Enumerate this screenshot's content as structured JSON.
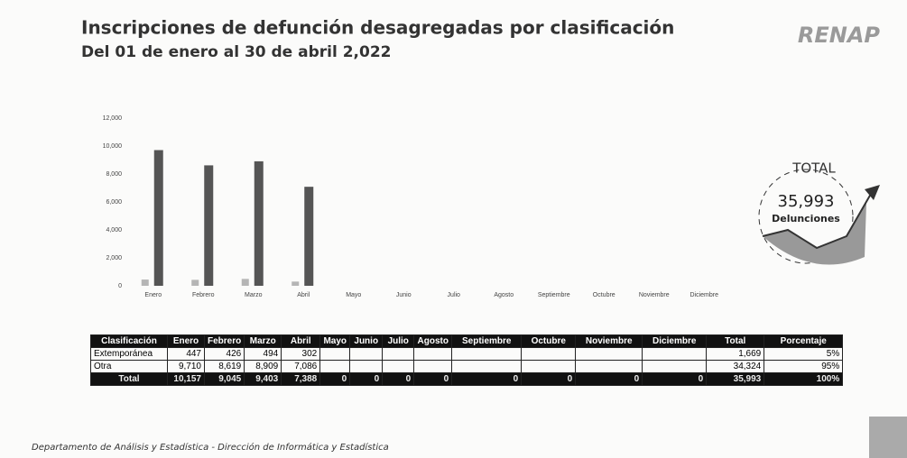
{
  "title": "Inscripciones de defunción desagregadas por clasificación",
  "subtitle": "Del 01 de enero al 30 de abril 2,022",
  "logo": "RENAP",
  "total_badge": {
    "label": "TOTAL",
    "value": "35,993",
    "caption": "Delunciones"
  },
  "footer": "Departamento de Análisis y Estadística - Dirección de Informática y Estadística",
  "chart_data": {
    "type": "bar",
    "categories": [
      "Enero",
      "Febrero",
      "Marzo",
      "Abril",
      "Mayo",
      "Junio",
      "Julio",
      "Agosto",
      "Septiembre",
      "Octubre",
      "Noviembre",
      "Diciembre"
    ],
    "series": [
      {
        "color": "#b5b5b5",
        "values": [
          447,
          426,
          494,
          302,
          null,
          null,
          null,
          null,
          null,
          null,
          null,
          null
        ]
      },
      {
        "color": "#555555",
        "values": [
          9710,
          8619,
          8909,
          7086,
          null,
          null,
          null,
          null,
          null,
          null,
          null,
          null
        ]
      }
    ],
    "ylim": [
      0,
      12000
    ],
    "yticks": [
      0,
      {
        "value": 2000,
        "label": "2,000"
      },
      {
        "value": 4000,
        "label": "4,000"
      },
      {
        "value": 6000,
        "label": "6,000"
      },
      {
        "value": 8000,
        "label": "8,000"
      },
      {
        "value": 10000,
        "label": "10,000"
      },
      {
        "value": 12000,
        "label": "12,000"
      }
    ]
  },
  "table": {
    "header": [
      "Clasificación",
      "Enero",
      "Febrero",
      "Marzo",
      "Abril",
      "Mayo",
      "Junio",
      "Julio",
      "Agosto",
      "Septiembre",
      "Octubre",
      "Noviembre",
      "Diciembre",
      "Total",
      "Porcentaje"
    ],
    "rows": [
      [
        "Extemporánea",
        "447",
        "426",
        "494",
        "302",
        null,
        null,
        null,
        null,
        null,
        null,
        null,
        null,
        "1,669",
        "5%"
      ],
      [
        "Otra",
        "9,710",
        "8,619",
        "8,909",
        "7,086",
        null,
        null,
        null,
        null,
        null,
        null,
        null,
        null,
        "34,324",
        "95%"
      ]
    ],
    "total_row": [
      "Total",
      "10,157",
      "9,045",
      "9,403",
      "7,388",
      "0",
      "0",
      "0",
      "0",
      "0",
      "0",
      "0",
      "0",
      "35,993",
      "100%"
    ]
  }
}
